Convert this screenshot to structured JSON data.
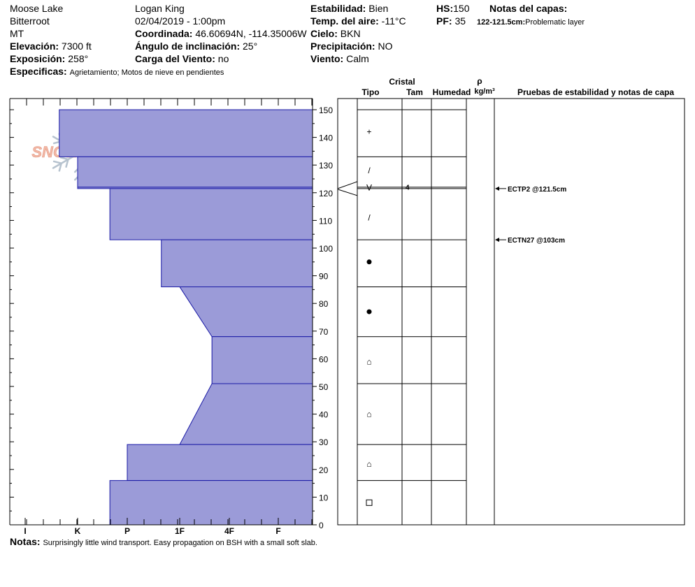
{
  "header": {
    "location": "Moose Lake",
    "range": "Bitterroot",
    "state": "MT",
    "elevation_label": "Elevación:",
    "elevation_value": "7300 ft",
    "exposure_label": "Exposición:",
    "exposure_value": "258°",
    "specifics_label": "Especificas:",
    "specifics_value": "Agrietamiento; Motos de nieve en pendientes",
    "observer": "Logan King",
    "datetime": "02/04/2019 - 1:00pm",
    "coord_label": "Coordinada:",
    "coord_value": "46.60694N, -114.35006W",
    "slope_label": "Ángulo de inclinación:",
    "slope_value": "25°",
    "wind_load_label": "Carga del Viento:",
    "wind_load_value": "no",
    "stability_label": "Estabilidad:",
    "stability_value": "Bien",
    "air_temp_label": "Temp. del aire:",
    "air_temp_value": "-11°C",
    "sky_label": "Cielo:",
    "sky_value": "BKN",
    "precip_label": "Precipitación:",
    "precip_value": "NO",
    "wind_label": "Viento:",
    "wind_value": "Calm",
    "hs_label": "HS:",
    "hs_value": "150",
    "pf_label": "PF:",
    "pf_value": "35",
    "layer_notes_label": "Notas del capas:",
    "layer_note_range": "122-121.5cm:",
    "layer_note_text": "Problematic layer"
  },
  "columns": {
    "crystal": "Cristal",
    "type": "Tipo",
    "size": "Tam",
    "moisture": "Humedad",
    "rho": "ρ",
    "density_unit": "kg/m³",
    "tests": "Pruebas de estabilidad y notas de capa"
  },
  "footer": {
    "notes_label": "Notas:",
    "notes_value": "Surprisingly little wind transport. Easy propagation on BSH with a small soft slab."
  },
  "logo_text": "SNOW PILOT",
  "colors": {
    "fill": "#9b9bd8",
    "edge": "#1a1aa6",
    "logo": "#f2b8a6",
    "flake": "#b7c3cf"
  },
  "chart_data": {
    "type": "area",
    "title": "",
    "hardness_scale": [
      "I",
      "K",
      "P",
      "1F",
      "4F",
      "F"
    ],
    "height_ticks": [
      0,
      10,
      20,
      30,
      40,
      50,
      60,
      70,
      80,
      90,
      100,
      110,
      120,
      130,
      140,
      150
    ],
    "ylim": [
      0,
      150
    ],
    "layers": [
      {
        "top": 150,
        "bottom": 133,
        "hardness_top": 0.65,
        "hardness_bottom": 0.65
      },
      {
        "top": 133,
        "bottom": 122,
        "hardness_top": 1.0,
        "hardness_bottom": 1.0
      },
      {
        "top": 122,
        "bottom": 121.5,
        "hardness_top": 1.0,
        "hardness_bottom": 1.0
      },
      {
        "top": 121.5,
        "bottom": 103,
        "hardness_top": 1.65,
        "hardness_bottom": 1.65
      },
      {
        "top": 103,
        "bottom": 86,
        "hardness_top": 2.65,
        "hardness_bottom": 2.65
      },
      {
        "top": 86,
        "bottom": 68,
        "hardness_top": 3.0,
        "hardness_bottom": 3.65
      },
      {
        "top": 68,
        "bottom": 51,
        "hardness_top": 3.65,
        "hardness_bottom": 3.65
      },
      {
        "top": 51,
        "bottom": 29,
        "hardness_top": 3.65,
        "hardness_bottom": 3.0
      },
      {
        "top": 29,
        "bottom": 16,
        "hardness_top": 2.0,
        "hardness_bottom": 2.0
      },
      {
        "top": 16,
        "bottom": 0,
        "hardness_top": 1.65,
        "hardness_bottom": 1.65
      }
    ],
    "crystals": [
      {
        "height": 142,
        "symbol": "+"
      },
      {
        "height": 128,
        "symbol": "/"
      },
      {
        "height": 121.8,
        "symbol": "V",
        "size": "4"
      },
      {
        "height": 111,
        "symbol": "/"
      },
      {
        "height": 95,
        "symbol": "●"
      },
      {
        "height": 77,
        "symbol": "●"
      },
      {
        "height": 59,
        "symbol": "⌂"
      },
      {
        "height": 40,
        "symbol": "⌂"
      },
      {
        "height": 22,
        "symbol": "⌂"
      },
      {
        "height": 8,
        "symbol": "□"
      }
    ],
    "tests": [
      {
        "height": 121.5,
        "label": "ECTP2 @121.5cm"
      },
      {
        "height": 103,
        "label": "ECTN27 @103cm"
      }
    ]
  }
}
